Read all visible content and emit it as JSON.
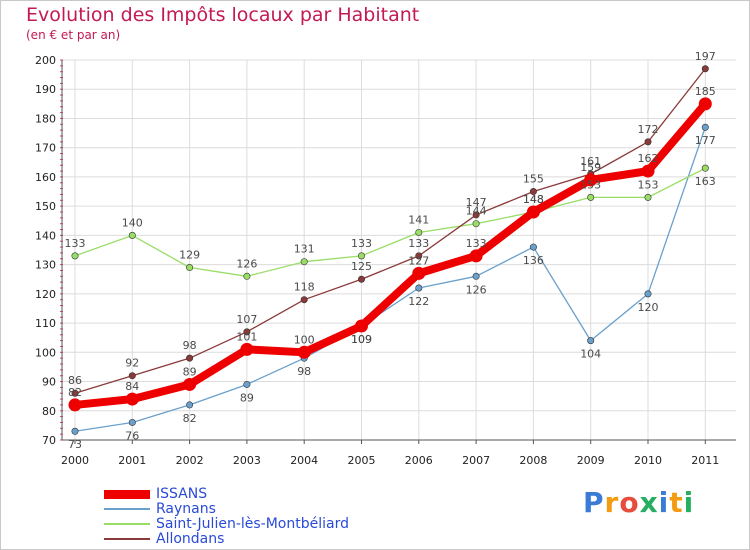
{
  "title": "Evolution des Impôts locaux par Habitant",
  "subtitle": "(en € et par an)",
  "logo": "Proxiti",
  "chart_data": {
    "type": "line",
    "title": "Evolution des Impôts locaux par Habitant",
    "subtitle": "(en € et par an)",
    "xlabel": "",
    "ylabel": "",
    "categories": [
      "2000",
      "2001",
      "2002",
      "2003",
      "2004",
      "2005",
      "2006",
      "2007",
      "2008",
      "2009",
      "2010",
      "2011"
    ],
    "yticks": [
      70,
      80,
      90,
      100,
      110,
      120,
      130,
      140,
      150,
      160,
      170,
      180,
      190,
      200
    ],
    "ylim": [
      70,
      200
    ],
    "grid": true,
    "legend": "bottom-left",
    "series": [
      {
        "name": "ISSANS",
        "color": "#ee0000",
        "values": [
          82,
          84,
          89,
          101,
          100,
          109,
          127,
          133,
          148,
          159,
          162,
          185
        ]
      },
      {
        "name": "Raynans",
        "color": "#6aa0cc",
        "values": [
          73,
          76,
          82,
          89,
          98,
          109,
          122,
          126,
          136,
          104,
          120,
          177
        ]
      },
      {
        "name": "Saint-Julien-lès-Montbéliard",
        "color": "#99dd66",
        "values": [
          133,
          140,
          129,
          126,
          131,
          133,
          141,
          144,
          148,
          153,
          153,
          163
        ]
      },
      {
        "name": "Allondans",
        "color": "#8b3a3a",
        "values": [
          86,
          92,
          98,
          107,
          118,
          125,
          133,
          147,
          155,
          161,
          172,
          197
        ]
      }
    ]
  }
}
